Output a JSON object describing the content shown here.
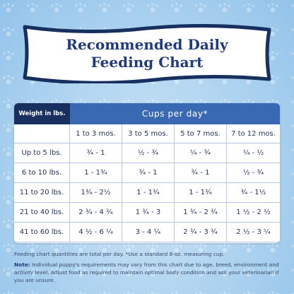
{
  "banner": {
    "line1": "Recommended Daily",
    "line2": "Feeding Chart"
  },
  "table": {
    "corner_label": "Weight in lbs.",
    "cups_label": "Cups per day*",
    "age_columns": [
      "1 to 3 mos.",
      "3 to 5 mos.",
      "5 to 7 mos.",
      "7 to 12 mos."
    ],
    "rows": [
      {
        "weight": "Up to 5 lbs.",
        "values": [
          "¾ - 1",
          "½ - ¾",
          "¼ - ¾",
          "¼ - ½"
        ]
      },
      {
        "weight": "6 to 10 lbs.",
        "values": [
          "1 - 1¾",
          "¾ - 1",
          "¾ - 1",
          "½ - ¾"
        ]
      },
      {
        "weight": "11 to 20 lbs.",
        "values": [
          "1¾ - 2½",
          "1 - 1¾",
          "1 - 1¾",
          "¾ - 1½"
        ]
      },
      {
        "weight": "21 to 40 lbs.",
        "values": [
          "2 ¾ - 4 ¾",
          "1 ¾ - 3",
          "1 ¾ - 2 ¾",
          "1 ½ - 2 ½"
        ]
      },
      {
        "weight": "41 to 60 lbs.",
        "values": [
          "4 ½ - 6 ¼",
          "3 - 4 ¼",
          "2 ¾ - 3 ¾",
          "2 ½ - 3 ¼"
        ]
      }
    ]
  },
  "notes": {
    "line1": "Feeding chart quantities are total per day. *Use a standard 8-oz. measuring cup.",
    "note_label": "Note:",
    "note_text": " Individual puppy's requirements may vary from this chart due to age, breed, environment and activity level. Adjust food as required to maintain optimal body condition and ask  your veterinarian if you are unsure."
  },
  "colors": {
    "navy": "#17305f",
    "blue_header": "#3a69b4",
    "banner_text": "#1f3b7a"
  }
}
